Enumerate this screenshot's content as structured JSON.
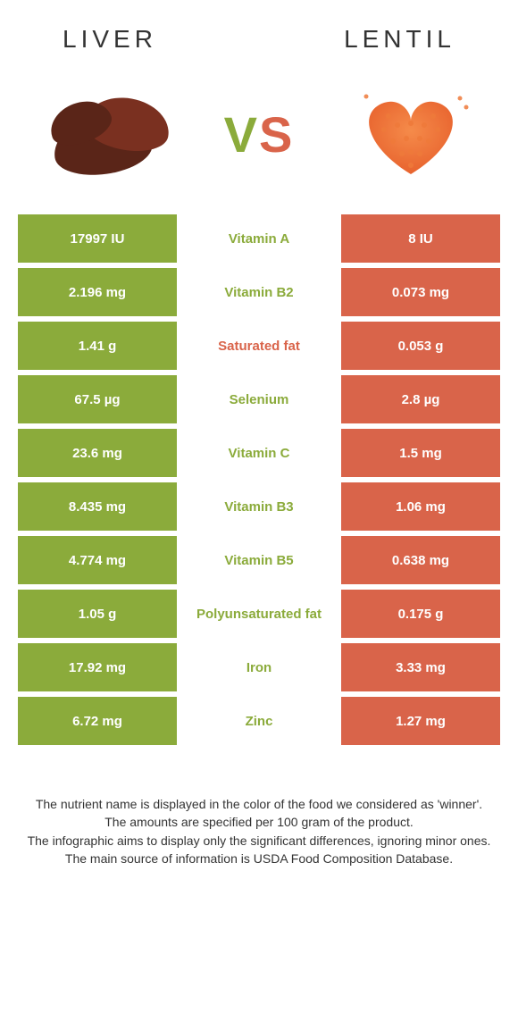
{
  "header": {
    "left": "Liver",
    "right": "Lentil",
    "vs": "VS"
  },
  "colors": {
    "liver_bg": "#8bab3b",
    "lentil_bg": "#d9644a",
    "liver_txt": "#8bab3b",
    "lentil_txt": "#d9644a",
    "liver_food": "#5a2518",
    "liver_food2": "#7a3020",
    "lentil_food": "#ef7a3a"
  },
  "rows": [
    {
      "l": "17997 IU",
      "m": "Vitamin A",
      "r": "8 IU",
      "winner": "liver"
    },
    {
      "l": "2.196 mg",
      "m": "Vitamin B2",
      "r": "0.073 mg",
      "winner": "liver"
    },
    {
      "l": "1.41 g",
      "m": "Saturated fat",
      "r": "0.053 g",
      "winner": "lentil"
    },
    {
      "l": "67.5 µg",
      "m": "Selenium",
      "r": "2.8 µg",
      "winner": "liver"
    },
    {
      "l": "23.6 mg",
      "m": "Vitamin C",
      "r": "1.5 mg",
      "winner": "liver"
    },
    {
      "l": "8.435 mg",
      "m": "Vitamin B3",
      "r": "1.06 mg",
      "winner": "liver"
    },
    {
      "l": "4.774 mg",
      "m": "Vitamin B5",
      "r": "0.638 mg",
      "winner": "liver"
    },
    {
      "l": "1.05 g",
      "m": "Polyunsaturated fat",
      "r": "0.175 g",
      "winner": "liver"
    },
    {
      "l": "17.92 mg",
      "m": "Iron",
      "r": "3.33 mg",
      "winner": "liver"
    },
    {
      "l": "6.72 mg",
      "m": "Zinc",
      "r": "1.27 mg",
      "winner": "liver"
    }
  ],
  "footer": {
    "l1": "The nutrient name is displayed in the color of the food we considered as 'winner'.",
    "l2": "The amounts are specified per 100 gram of the product.",
    "l3": "The infographic aims to display only the significant differences, ignoring minor ones.",
    "l4": "The main source of information is USDA Food Composition Database."
  }
}
